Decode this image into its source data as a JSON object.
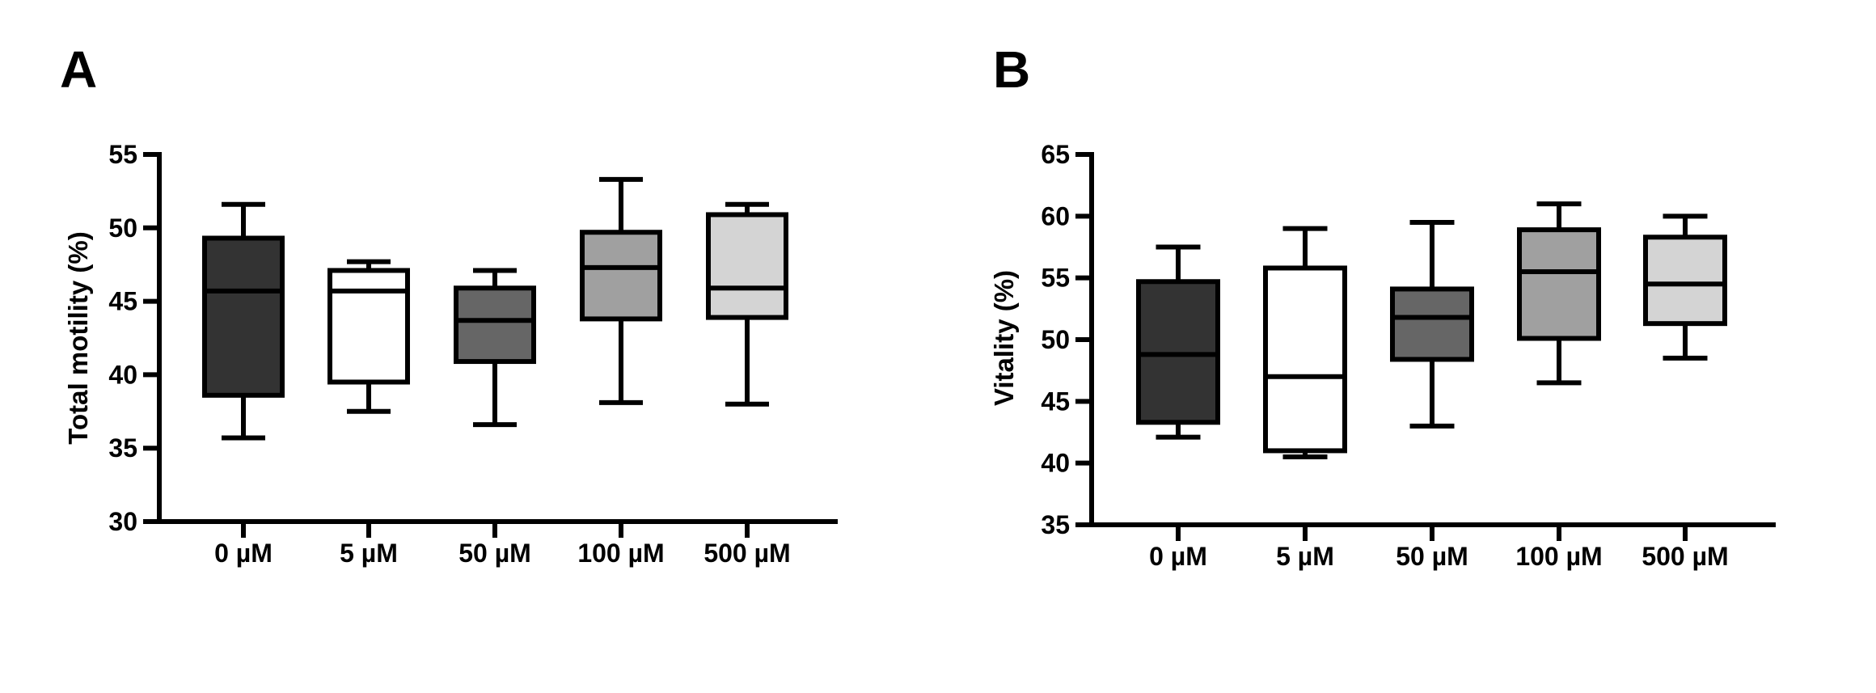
{
  "chart_data": [
    {
      "panel_label": "A",
      "type": "boxplot",
      "ylabel": "Total motility (%)",
      "xlabel": "",
      "ylim": [
        30,
        55
      ],
      "yticks": [
        30,
        35,
        40,
        45,
        50,
        55
      ],
      "grid": false,
      "categories": [
        "0 µM",
        "5 µM",
        "50 µM",
        "100 µM",
        "500 µM"
      ],
      "colors": [
        "#333333",
        "#ffffff",
        "#666666",
        "#a0a0a0",
        "#d4d4d4"
      ],
      "series": [
        {
          "values": {
            "min": 35.7,
            "q1": 38.6,
            "median": 45.7,
            "q3": 49.3,
            "max": 51.6
          }
        },
        {
          "values": {
            "min": 37.5,
            "q1": 39.5,
            "median": 45.7,
            "q3": 47.1,
            "max": 47.7
          }
        },
        {
          "values": {
            "min": 36.6,
            "q1": 40.9,
            "median": 43.7,
            "q3": 45.9,
            "max": 47.1
          }
        },
        {
          "values": {
            "min": 38.1,
            "q1": 43.8,
            "median": 47.3,
            "q3": 49.7,
            "max": 53.3
          }
        },
        {
          "values": {
            "min": 38.0,
            "q1": 43.9,
            "median": 45.9,
            "q3": 50.9,
            "max": 51.6
          }
        }
      ]
    },
    {
      "panel_label": "B",
      "type": "boxplot",
      "ylabel": "Vitality (%)",
      "xlabel": "",
      "ylim": [
        35,
        65
      ],
      "yticks": [
        35,
        40,
        45,
        50,
        55,
        60,
        65
      ],
      "grid": false,
      "categories": [
        "0 µM",
        "5 µM",
        "50 µM",
        "100 µM",
        "500 µM"
      ],
      "colors": [
        "#333333",
        "#ffffff",
        "#666666",
        "#a0a0a0",
        "#d4d4d4"
      ],
      "series": [
        {
          "values": {
            "min": 42.1,
            "q1": 43.3,
            "median": 48.8,
            "q3": 54.7,
            "max": 57.5
          }
        },
        {
          "values": {
            "min": 40.5,
            "q1": 41.0,
            "median": 47.0,
            "q3": 55.8,
            "max": 59.0
          }
        },
        {
          "values": {
            "min": 43.0,
            "q1": 48.4,
            "median": 51.8,
            "q3": 54.1,
            "max": 59.5
          }
        },
        {
          "values": {
            "min": 46.5,
            "q1": 50.1,
            "median": 55.5,
            "q3": 58.9,
            "max": 61.0
          }
        },
        {
          "values": {
            "min": 48.5,
            "q1": 51.3,
            "median": 54.5,
            "q3": 58.3,
            "max": 60.0
          }
        }
      ]
    }
  ]
}
